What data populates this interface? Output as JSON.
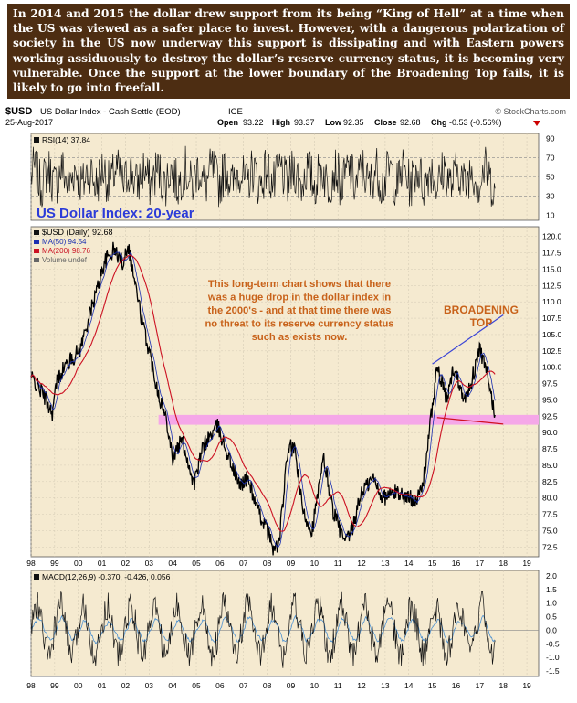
{
  "caption": "In 2014 and 2015 the dollar drew support from its being “King of Hell” at a time when the US was viewed as a safer place to invest. However, with a dangerous polarization of society in the US now underway this support is dissipating and with Eastern powers working assiduously to destroy the dollar’s reserve currency status, it is becoming very vulnerable. Once the support at the lower boundary of the Broadening Top fails, it is likely to go into freefall.",
  "header": {
    "symbol": "$USD",
    "name": "US Dollar Index - Cash Settle (EOD)",
    "exchange": "ICE",
    "date": "25-Aug-2017",
    "brand": "© StockCharts.com",
    "open_label": "Open",
    "open": "93.22",
    "high_label": "High",
    "high": "93.37",
    "low_label": "Low",
    "low": "92.35",
    "close_label": "Close",
    "close": "92.68",
    "chg_label": "Chg",
    "chg": "-0.53 (-0.56%)"
  },
  "colors": {
    "caption_bg": "#4d2d12",
    "panel_bg": "#f5ead0",
    "price": "#000000",
    "ma50": "#1a2fb0",
    "ma200": "#cc1122",
    "support_band": "#f5a7e8",
    "broadening_upper": "#3b45d6",
    "broadening_lower": "#d01020",
    "annotation": "#c8621a",
    "title": "#2b3bd8",
    "macd_signal": "#4a8fd0",
    "chg_down": "#cc0000"
  },
  "chart_data": [
    {
      "type": "line",
      "panel": "RSI",
      "legend": "RSI(14) 37.84",
      "series": [
        {
          "name": "RSI(14)",
          "last": 37.84
        }
      ],
      "y_ticks": [
        "90",
        "70",
        "50",
        "30",
        "10"
      ],
      "ylim": [
        5,
        95
      ],
      "guides": [
        70,
        50,
        30
      ]
    },
    {
      "type": "line",
      "panel": "Price",
      "title": "US Dollar Index: 20-year",
      "legend": [
        "$USD (Daily) 92.68",
        "MA(50) 94.54",
        "MA(200) 98.76",
        "Volume undef"
      ],
      "x_ticks": [
        "98",
        "99",
        "00",
        "01",
        "02",
        "03",
        "04",
        "05",
        "06",
        "07",
        "08",
        "09",
        "10",
        "11",
        "12",
        "13",
        "14",
        "15",
        "16",
        "17",
        "18",
        "19"
      ],
      "y_ticks": [
        "120.0",
        "117.5",
        "115.0",
        "112.5",
        "110.0",
        "107.5",
        "105.0",
        "102.5",
        "100.0",
        "97.5",
        "95.0",
        "92.5",
        "90.0",
        "87.5",
        "85.0",
        "82.5",
        "80.0",
        "77.5",
        "75.0",
        "72.5"
      ],
      "ylim": [
        71,
        121.5
      ],
      "xlim": [
        1998.0,
        2019.5
      ],
      "x": [
        1998.0,
        1998.5,
        1998.9,
        1999.1,
        1999.4,
        1999.8,
        2000.1,
        2000.4,
        2000.8,
        2001.1,
        2001.5,
        2001.9,
        2002.1,
        2002.4,
        2002.7,
        2003.0,
        2003.4,
        2003.8,
        2004.0,
        2004.4,
        2004.9,
        2005.3,
        2005.9,
        2006.3,
        2006.8,
        2007.2,
        2007.6,
        2007.9,
        2008.3,
        2008.5,
        2008.9,
        2009.2,
        2009.5,
        2009.9,
        2010.4,
        2010.8,
        2011.3,
        2011.6,
        2012.0,
        2012.5,
        2012.9,
        2013.5,
        2013.9,
        2014.4,
        2014.6,
        2015.0,
        2015.2,
        2015.6,
        2015.9,
        2016.4,
        2016.9,
        2017.0,
        2017.3,
        2017.65
      ],
      "series": [
        {
          "name": "$USD (Daily)",
          "values": [
            98.5,
            96,
            93,
            98,
            100,
            101.5,
            103,
            107,
            112,
            116,
            118,
            116,
            119,
            113,
            107,
            102.5,
            96,
            91,
            86,
            89,
            82,
            88,
            91,
            87,
            82,
            83,
            78,
            76,
            72,
            73,
            88,
            87,
            78,
            75,
            86,
            78,
            73,
            75,
            81,
            83,
            80,
            81,
            80,
            80,
            82,
            94,
            100,
            95,
            100,
            95,
            101,
            103,
            99,
            92.68
          ]
        }
      ],
      "ma50_last": 94.54,
      "ma200_last": 98.76,
      "support_band": [
        91.2,
        92.7
      ],
      "broadening_top": {
        "upper": {
          "x": [
            2015.0,
            2018.0
          ],
          "y": [
            100.5,
            108
          ]
        },
        "lower": {
          "x": [
            2015.2,
            2018.0
          ],
          "y": [
            92.3,
            91.3
          ]
        }
      }
    },
    {
      "type": "line",
      "panel": "MACD",
      "legend": "MACD(12,26,9) -0.370, -0.426, 0.056",
      "series": [
        {
          "name": "MACD(12,26,9)",
          "last": -0.37
        },
        {
          "name": "Signal",
          "last": -0.426
        },
        {
          "name": "Histogram",
          "last": 0.056
        }
      ],
      "y_ticks": [
        "2.0",
        "1.5",
        "1.0",
        "0.5",
        "0.0",
        "-0.5",
        "-1.0",
        "-1.5"
      ],
      "ylim": [
        -1.7,
        2.2
      ]
    }
  ],
  "annotations": {
    "note": "This long-term chart shows that there was a huge drop in the dollar index in the 2000's - and at that time there was no threat to its reserve currency status such as exists now.",
    "broadening": "BROADENING TOP"
  }
}
